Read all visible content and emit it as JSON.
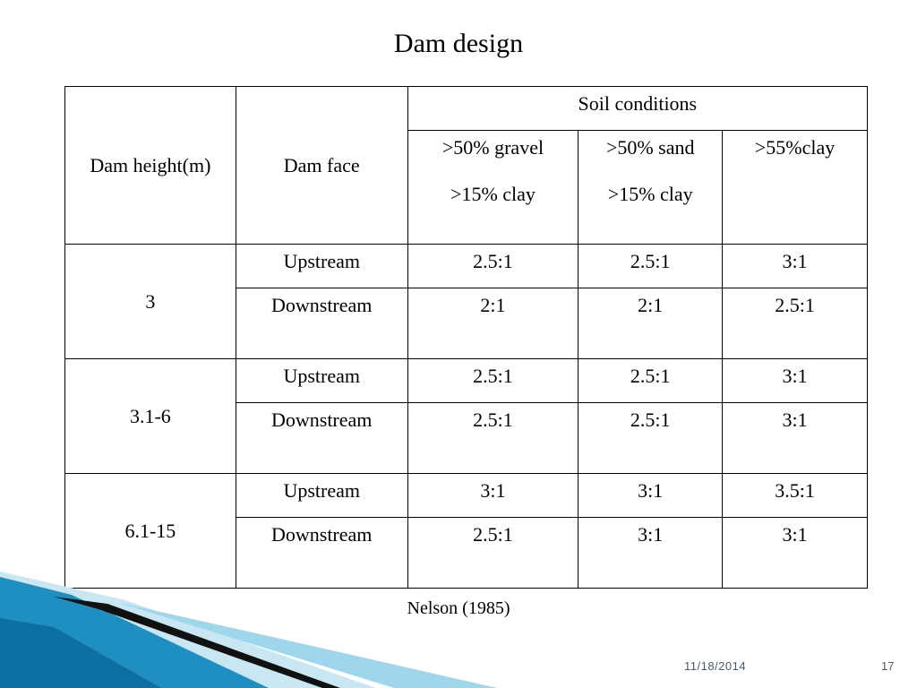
{
  "slide": {
    "title": "Dam design",
    "source": "Nelson (1985)",
    "date": "11/18/2014",
    "page_number": "17"
  },
  "table": {
    "col_dam_height": "Dam height(m)",
    "col_dam_face": "Dam face",
    "group_header": "Soil conditions",
    "soil_columns": [
      {
        "line1": ">50% gravel",
        "line2": ">15% clay"
      },
      {
        "line1": ">50% sand",
        "line2": ">15% clay"
      },
      {
        "line1": ">55%clay",
        "line2": ""
      }
    ],
    "groups": [
      {
        "height": "3",
        "rows": [
          {
            "face": "Upstream",
            "values": [
              "2.5:1",
              "2.5:1",
              "3:1"
            ]
          },
          {
            "face": "Downstream",
            "values": [
              "2:1",
              "2:1",
              "2.5:1"
            ]
          }
        ]
      },
      {
        "height": "3.1-6",
        "rows": [
          {
            "face": "Upstream",
            "values": [
              "2.5:1",
              "2.5:1",
              "3:1"
            ]
          },
          {
            "face": "Downstream",
            "values": [
              "2.5:1",
              "2.5:1",
              "3:1"
            ]
          }
        ]
      },
      {
        "height": "6.1-15",
        "rows": [
          {
            "face": "Upstream",
            "values": [
              "3:1",
              "3:1",
              "3.5:1"
            ]
          },
          {
            "face": "Downstream",
            "values": [
              "2.5:1",
              "3:1",
              "3:1"
            ]
          }
        ]
      }
    ]
  },
  "colors": {
    "swoosh_blue": "#1e8fc0",
    "swoosh_light": "#9ed6ec",
    "swoosh_dark": "#111111"
  }
}
